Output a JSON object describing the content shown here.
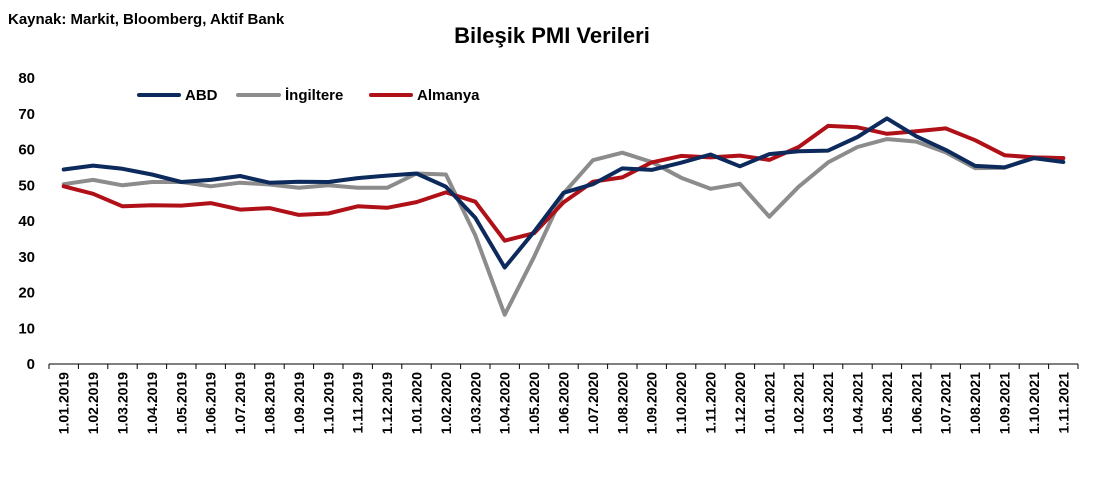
{
  "source": "Kaynak: Markit,  Bloomberg, Aktif Bank",
  "chart_data": {
    "type": "line",
    "title": "Bileşik PMI Verileri",
    "xlabel": "",
    "ylabel": "",
    "ylim": [
      0,
      80
    ],
    "yticks": [
      0,
      10,
      20,
      30,
      40,
      50,
      60,
      70,
      80
    ],
    "grid": false,
    "legend_position": "top-left",
    "categories": [
      "1.01.2019",
      "1.02.2019",
      "1.03.2019",
      "1.04.2019",
      "1.05.2019",
      "1.06.2019",
      "1.07.2019",
      "1.08.2019",
      "1.09.2019",
      "1.10.2019",
      "1.11.2019",
      "1.12.2019",
      "1.01.2020",
      "1.02.2020",
      "1.03.2020",
      "1.04.2020",
      "1.05.2020",
      "1.06.2020",
      "1.07.2020",
      "1.08.2020",
      "1.09.2020",
      "1.10.2020",
      "1.11.2020",
      "1.12.2020",
      "1.01.2021",
      "1.02.2021",
      "1.03.2021",
      "1.04.2021",
      "1.05.2021",
      "1.06.2021",
      "1.07.2021",
      "1.08.2021",
      "1.09.2021",
      "1.10.2021",
      "1.11.2021"
    ],
    "series": [
      {
        "name": "ABD",
        "color": "#0d2a5c",
        "values": [
          54.4,
          55.5,
          54.6,
          53.0,
          50.9,
          51.5,
          52.6,
          50.7,
          51.0,
          50.9,
          52.0,
          52.7,
          53.3,
          49.6,
          40.9,
          27.0,
          37.0,
          47.9,
          50.3,
          54.7,
          54.3,
          56.3,
          58.6,
          55.3,
          58.7,
          59.5,
          59.7,
          63.5,
          68.7,
          63.7,
          59.9,
          55.4,
          55.0,
          57.6,
          56.5
        ]
      },
      {
        "name": "İngiltere",
        "color": "#8c8c8c",
        "values": [
          50.3,
          51.5,
          50.0,
          50.9,
          50.9,
          49.7,
          50.7,
          50.2,
          49.3,
          50.0,
          49.3,
          49.3,
          53.3,
          53.0,
          36.0,
          13.8,
          30.0,
          47.7,
          57.0,
          59.1,
          56.5,
          52.1,
          49.0,
          50.4,
          41.2,
          49.6,
          56.4,
          60.7,
          62.9,
          62.2,
          59.2,
          54.8,
          54.9,
          57.8,
          57.6
        ]
      },
      {
        "name": "Almanya",
        "color": "#b01018",
        "values": [
          49.7,
          47.6,
          44.1,
          44.4,
          44.3,
          45.0,
          43.2,
          43.6,
          41.7,
          42.1,
          44.1,
          43.7,
          45.3,
          48.0,
          45.4,
          34.5,
          36.6,
          45.2,
          51.0,
          52.2,
          56.4,
          58.2,
          57.8,
          58.3,
          57.1,
          60.7,
          66.6,
          66.2,
          64.4,
          65.1,
          65.9,
          62.6,
          58.4,
          57.8,
          57.6
        ]
      }
    ]
  }
}
